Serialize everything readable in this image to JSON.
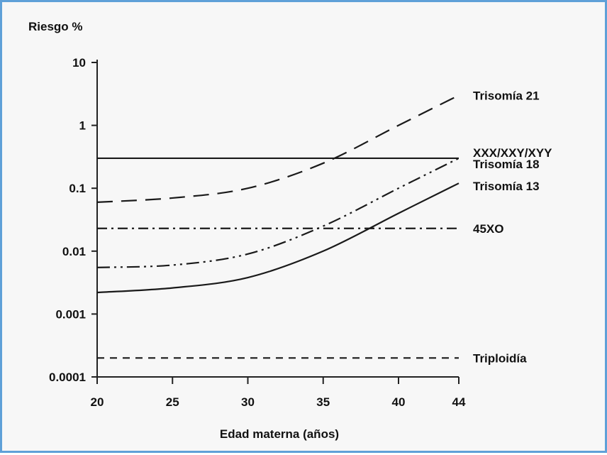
{
  "chart_data": {
    "type": "line",
    "ylabel": "Riesgo %",
    "xlabel": "Edad materna (años)",
    "y_scale": "log",
    "ylim": [
      0.0001,
      10
    ],
    "xlim": [
      20,
      44
    ],
    "x_ticks": [
      "20",
      "25",
      "30",
      "35",
      "40",
      "44"
    ],
    "y_ticks": [
      "10",
      "1",
      "0.1",
      "0.01",
      "0.001",
      "0.0001"
    ],
    "grid": false,
    "series": [
      {
        "name": "Trisomía 21",
        "style": "dashed",
        "x": [
          20,
          25,
          30,
          35,
          40,
          44
        ],
        "y": [
          0.06,
          0.07,
          0.1,
          0.25,
          1.0,
          3.0
        ]
      },
      {
        "name": "XXX/XXY/XYY",
        "style": "solid",
        "x": [
          20,
          44
        ],
        "y": [
          0.3,
          0.3
        ]
      },
      {
        "name": "Trisomía 18",
        "style": "dashdotdot",
        "x": [
          20,
          25,
          30,
          35,
          40,
          44
        ],
        "y": [
          0.0055,
          0.006,
          0.009,
          0.025,
          0.1,
          0.3
        ]
      },
      {
        "name": "Trisomía 13",
        "style": "solid",
        "x": [
          20,
          25,
          30,
          35,
          40,
          44
        ],
        "y": [
          0.0022,
          0.0026,
          0.0038,
          0.01,
          0.04,
          0.12
        ]
      },
      {
        "name": "45XO",
        "style": "dashdot",
        "x": [
          20,
          44
        ],
        "y": [
          0.023,
          0.023
        ]
      },
      {
        "name": "Triploidía",
        "style": "dotted",
        "x": [
          20,
          44
        ],
        "y": [
          0.0002,
          0.0002
        ]
      }
    ]
  }
}
